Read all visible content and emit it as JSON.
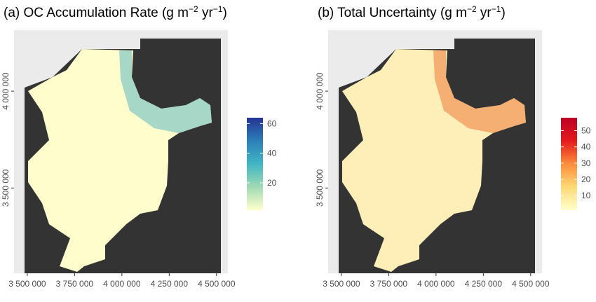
{
  "panels": [
    {
      "title_parts": [
        "(a)  OC Accumulation Rate ",
        "(g m",
        "−2",
        " yr",
        "−1",
        ")"
      ],
      "xlim": [
        3430000,
        4560000
      ],
      "ylim": [
        3060000,
        4315000
      ],
      "xticks": [
        {
          "value": 3500000,
          "label": "3 500 000"
        },
        {
          "value": 3750000,
          "label": "3 750 000"
        },
        {
          "value": 4000000,
          "label": "4 000 000"
        },
        {
          "value": 4250000,
          "label": "4 250 000"
        },
        {
          "value": 4500000,
          "label": "4 500 000"
        }
      ],
      "yticks": [
        {
          "value": 3500000,
          "label": "3 500 000"
        },
        {
          "value": 4000000,
          "label": "4 000 000"
        }
      ],
      "colorbar": {
        "lim": [
          1.5,
          64
        ],
        "ticks": [
          20,
          40,
          60
        ],
        "colors": [
          "#ffffcc",
          "#a1dab4",
          "#41b6c4",
          "#2c7fb8",
          "#253494"
        ]
      }
    },
    {
      "title_parts": [
        "(b)  Total Uncertainty ",
        "(g m",
        "−2",
        " yr",
        "−1",
        ")"
      ],
      "xlim": [
        3430000,
        4560000
      ],
      "ylim": [
        3060000,
        4315000
      ],
      "xticks": [
        {
          "value": 3500000,
          "label": "3 500 000"
        },
        {
          "value": 3750000,
          "label": "3 750 000"
        },
        {
          "value": 4000000,
          "label": "4 000 000"
        },
        {
          "value": 4250000,
          "label": "4 250 000"
        },
        {
          "value": 4500000,
          "label": "4 500 000"
        }
      ],
      "yticks": [
        {
          "value": 3500000,
          "label": "3 500 000"
        },
        {
          "value": 4000000,
          "label": "4 000 000"
        }
      ],
      "colorbar": {
        "lim": [
          1,
          58
        ],
        "ticks": [
          10,
          20,
          30,
          40,
          50
        ],
        "colors": [
          "#ffffcc",
          "#fed976",
          "#fd8d3c",
          "#e31a1c",
          "#bd0026"
        ]
      }
    }
  ]
}
